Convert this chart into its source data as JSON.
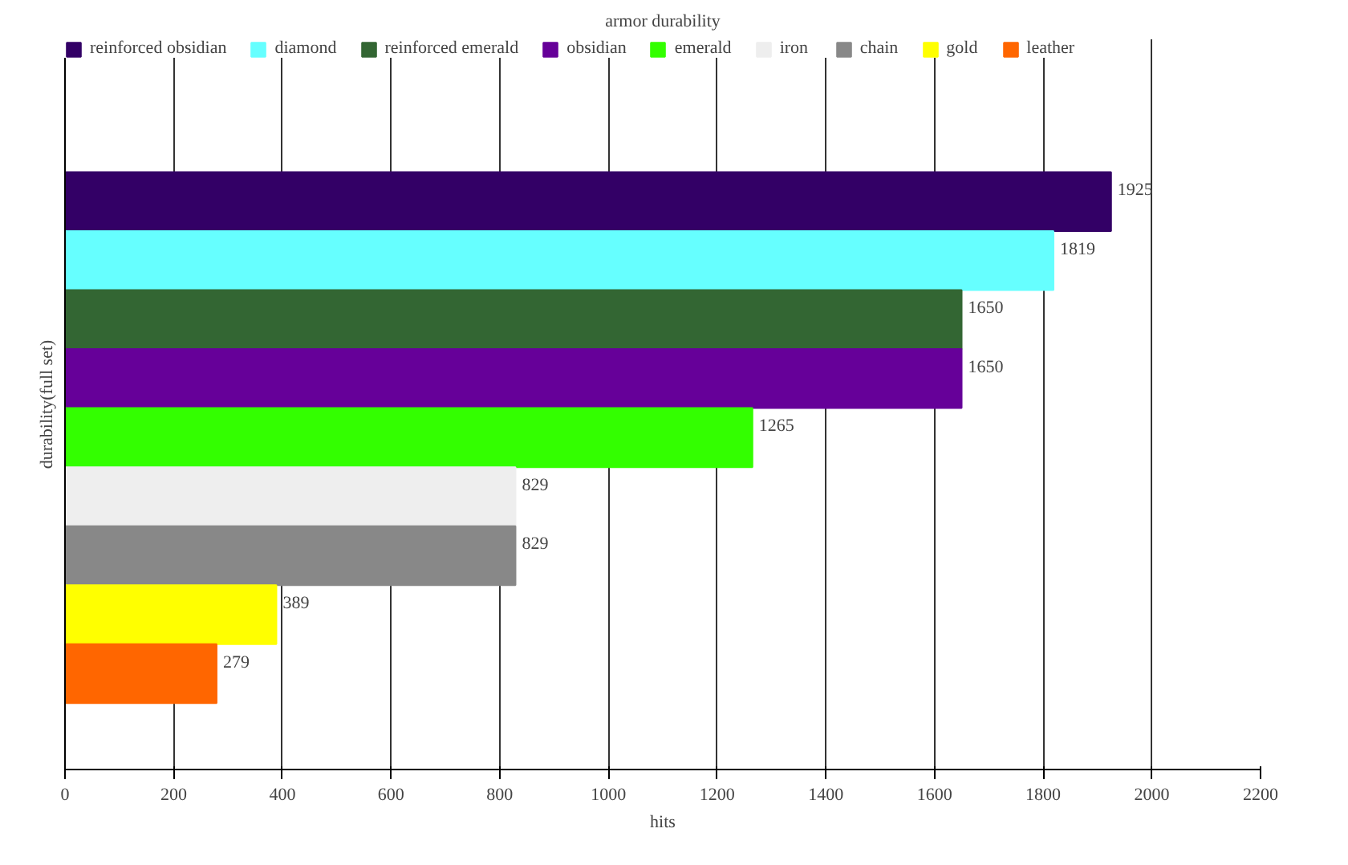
{
  "chart_data": {
    "type": "bar",
    "orientation": "horizontal",
    "title": "armor durability",
    "xlabel": "hits",
    "ylabel": "durability(full set)",
    "categories": [
      null
    ],
    "series": [
      {
        "name": "reinforced obsidian",
        "color": "#330066",
        "values": [
          1925
        ]
      },
      {
        "name": "diamond",
        "color": "#66ffff",
        "values": [
          1819
        ]
      },
      {
        "name": "reinforced emerald",
        "color": "#336633",
        "values": [
          1650
        ]
      },
      {
        "name": "obsidian",
        "color": "#660099",
        "values": [
          1650
        ]
      },
      {
        "name": "emerald",
        "color": "#33ff00",
        "values": [
          1265
        ]
      },
      {
        "name": "iron",
        "color": "#eeeeee",
        "values": [
          829
        ]
      },
      {
        "name": "chain",
        "color": "#888888",
        "values": [
          829
        ]
      },
      {
        "name": "gold",
        "color": "#ffff00",
        "values": [
          389
        ]
      },
      {
        "name": "leather",
        "color": "#ff6600",
        "values": [
          279
        ]
      }
    ],
    "xlim": [
      0,
      2200
    ],
    "xticks": [
      0,
      200,
      400,
      600,
      800,
      1000,
      1200,
      1400,
      1600,
      1800,
      2000,
      2200
    ],
    "grid": "x",
    "legend": "top",
    "data_labels": true
  }
}
